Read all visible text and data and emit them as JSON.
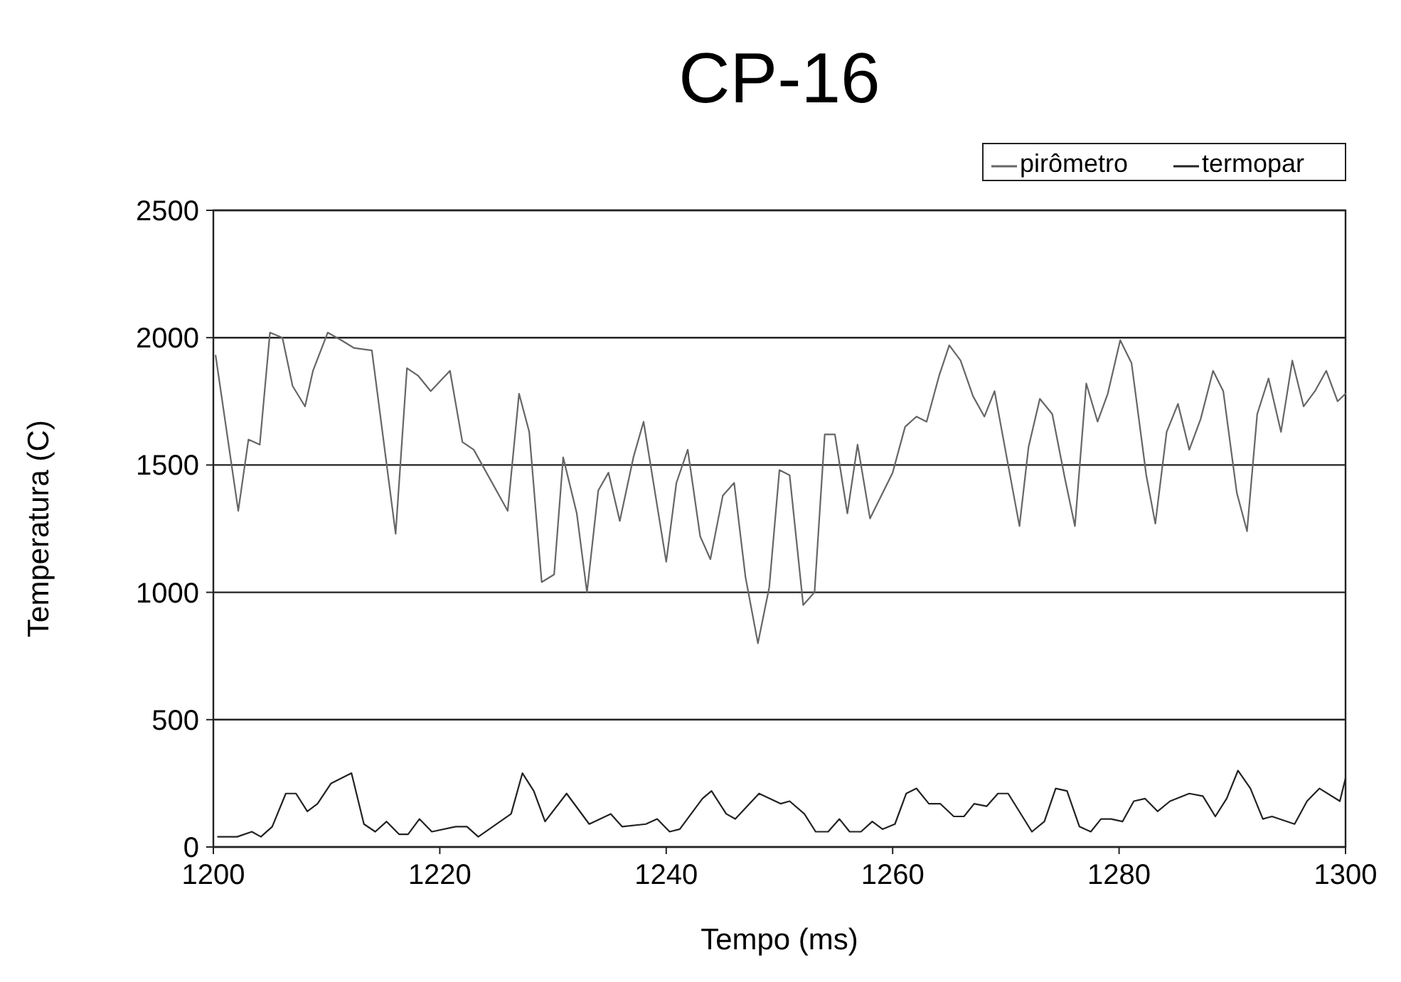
{
  "chart_data": {
    "type": "line",
    "title": "CP-16",
    "xlabel": "Tempo (ms)",
    "ylabel": "Temperatura (C)",
    "xlim": [
      1200,
      1300
    ],
    "xticks": [
      1200,
      1220,
      1240,
      1260,
      1280,
      1300
    ],
    "ylim": [
      0,
      2500
    ],
    "yticks": [
      0,
      500,
      1000,
      1500,
      2000,
      2500
    ],
    "grid": "y",
    "legend": "top right",
    "line_style": "solid",
    "marker": "none",
    "series": [
      {
        "name": "pirômetro",
        "color": "#666666",
        "x": [
          1200.2,
          1202.2,
          1203.1,
          1204.1,
          1205.0,
          1206.1,
          1207.0,
          1208.1,
          1208.8,
          1210.1,
          1211.3,
          1212.4,
          1214.0,
          1216.1,
          1217.1,
          1218.1,
          1219.2,
          1220.9,
          1222.0,
          1223.0,
          1226.0,
          1227.0,
          1227.9,
          1229.0,
          1230.1,
          1230.9,
          1232.1,
          1233.0,
          1234.0,
          1234.9,
          1235.9,
          1237.1,
          1238.0,
          1240.0,
          1240.9,
          1241.9,
          1243.0,
          1243.9,
          1245.0,
          1246.0,
          1247.0,
          1248.1,
          1249.1,
          1250.0,
          1250.9,
          1252.1,
          1253.1,
          1254.0,
          1254.9,
          1256.0,
          1256.9,
          1258.0,
          1260.0,
          1261.1,
          1262.1,
          1263.0,
          1264.1,
          1265.0,
          1266.0,
          1267.1,
          1268.1,
          1269.0,
          1270.2,
          1271.2,
          1272.0,
          1273.0,
          1274.1,
          1275.2,
          1276.1,
          1277.1,
          1278.1,
          1279.0,
          1280.1,
          1281.1,
          1282.4,
          1283.2,
          1284.2,
          1285.2,
          1286.2,
          1287.2,
          1288.3,
          1289.2,
          1290.4,
          1291.3,
          1292.2,
          1293.2,
          1294.3,
          1295.3,
          1296.3,
          1297.3,
          1298.3,
          1299.3,
          1300
        ],
        "values": [
          1930,
          1320,
          1600,
          1580,
          2020,
          2000,
          1810,
          1730,
          1870,
          2020,
          1990,
          1960,
          1950,
          1230,
          1880,
          1850,
          1790,
          1870,
          1590,
          1560,
          1320,
          1780,
          1630,
          1040,
          1070,
          1530,
          1310,
          1000,
          1400,
          1470,
          1280,
          1530,
          1670,
          1120,
          1430,
          1560,
          1220,
          1130,
          1380,
          1430,
          1060,
          800,
          1020,
          1480,
          1460,
          950,
          1000,
          1620,
          1620,
          1310,
          1580,
          1290,
          1470,
          1650,
          1690,
          1670,
          1850,
          1970,
          1910,
          1770,
          1690,
          1790,
          1500,
          1260,
          1570,
          1760,
          1700,
          1450,
          1260,
          1820,
          1670,
          1780,
          1990,
          1900,
          1460,
          1270,
          1630,
          1740,
          1560,
          1680,
          1870,
          1790,
          1390,
          1240,
          1700,
          1840,
          1630,
          1910,
          1730,
          1790,
          1870,
          1750,
          1780
        ]
      },
      {
        "name": "termopar",
        "color": "#222222",
        "x": [
          1200.4,
          1202.1,
          1203.4,
          1204.2,
          1205.2,
          1206.4,
          1207.3,
          1208.3,
          1209.2,
          1210.4,
          1212.2,
          1213.3,
          1214.3,
          1215.3,
          1216.4,
          1217.2,
          1218.2,
          1219.3,
          1221.4,
          1222.4,
          1223.4,
          1226.3,
          1227.3,
          1228.3,
          1229.3,
          1231.2,
          1233.2,
          1235.1,
          1236.1,
          1238.2,
          1239.2,
          1240.3,
          1241.2,
          1243.2,
          1244.0,
          1245.3,
          1246.1,
          1248.2,
          1250.1,
          1250.9,
          1252.2,
          1253.2,
          1254.3,
          1255.3,
          1256.2,
          1257.2,
          1258.2,
          1259.1,
          1260.2,
          1261.2,
          1262.1,
          1263.2,
          1264.2,
          1265.4,
          1266.3,
          1267.2,
          1268.3,
          1269.3,
          1270.2,
          1272.3,
          1273.4,
          1274.4,
          1275.4,
          1276.5,
          1277.5,
          1278.4,
          1279.3,
          1280.3,
          1281.3,
          1282.3,
          1283.4,
          1284.5,
          1286.2,
          1287.4,
          1288.5,
          1289.5,
          1290.5,
          1291.6,
          1292.7,
          1293.5,
          1295.5,
          1296.6,
          1297.7,
          1299.5,
          1300
        ],
        "values": [
          40,
          40,
          60,
          40,
          80,
          210,
          210,
          140,
          170,
          250,
          290,
          90,
          60,
          100,
          50,
          50,
          110,
          60,
          80,
          80,
          40,
          130,
          290,
          220,
          100,
          210,
          90,
          130,
          80,
          90,
          110,
          60,
          70,
          190,
          220,
          130,
          110,
          210,
          170,
          180,
          130,
          60,
          60,
          110,
          60,
          60,
          100,
          70,
          90,
          210,
          230,
          170,
          170,
          120,
          120,
          170,
          160,
          210,
          210,
          60,
          100,
          230,
          220,
          80,
          60,
          110,
          110,
          100,
          180,
          190,
          140,
          180,
          210,
          200,
          120,
          190,
          300,
          230,
          110,
          120,
          90,
          180,
          230,
          180,
          270
        ]
      }
    ]
  }
}
